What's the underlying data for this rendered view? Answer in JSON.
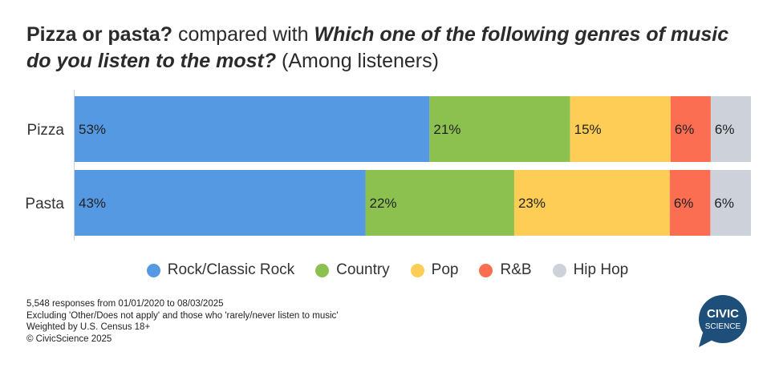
{
  "title": {
    "part1": "Pizza or pasta?",
    "part2": " compared with ",
    "part3": "Which one of the following genres of music do you listen to the most?",
    "part4": " (Among listeners)"
  },
  "chart_data": {
    "type": "bar",
    "orientation": "horizontal",
    "stacked": true,
    "normalized": true,
    "categories": [
      "Pizza",
      "Pasta"
    ],
    "series": [
      {
        "name": "Rock/Classic Rock",
        "color": "#5599e3",
        "values": [
          53,
          43
        ],
        "labels": [
          "53%",
          "43%"
        ]
      },
      {
        "name": "Country",
        "color": "#8cc150",
        "values": [
          21,
          22
        ],
        "labels": [
          "21%",
          "22%"
        ]
      },
      {
        "name": "Pop",
        "color": "#fecd56",
        "values": [
          15,
          23
        ],
        "labels": [
          "15%",
          "23%"
        ]
      },
      {
        "name": "R&B",
        "color": "#fb6e52",
        "values": [
          6,
          6
        ],
        "labels": [
          "6%",
          "6%"
        ]
      },
      {
        "name": "Hip Hop",
        "color": "#cdd1d9",
        "values": [
          6,
          6
        ],
        "labels": [
          "6%",
          "6%"
        ]
      }
    ],
    "legend_position": "bottom"
  },
  "footnotes": [
    "5,548 responses from 01/01/2020 to 08/03/2025",
    "Excluding 'Other/Does not apply' and those who 'rarely/never listen to music'",
    "Weighted by U.S. Census 18+",
    "© CivicScience 2025"
  ],
  "logo": {
    "line1": "CIVIC",
    "line2": "SCIENCE",
    "color": "#1d4f7a"
  }
}
